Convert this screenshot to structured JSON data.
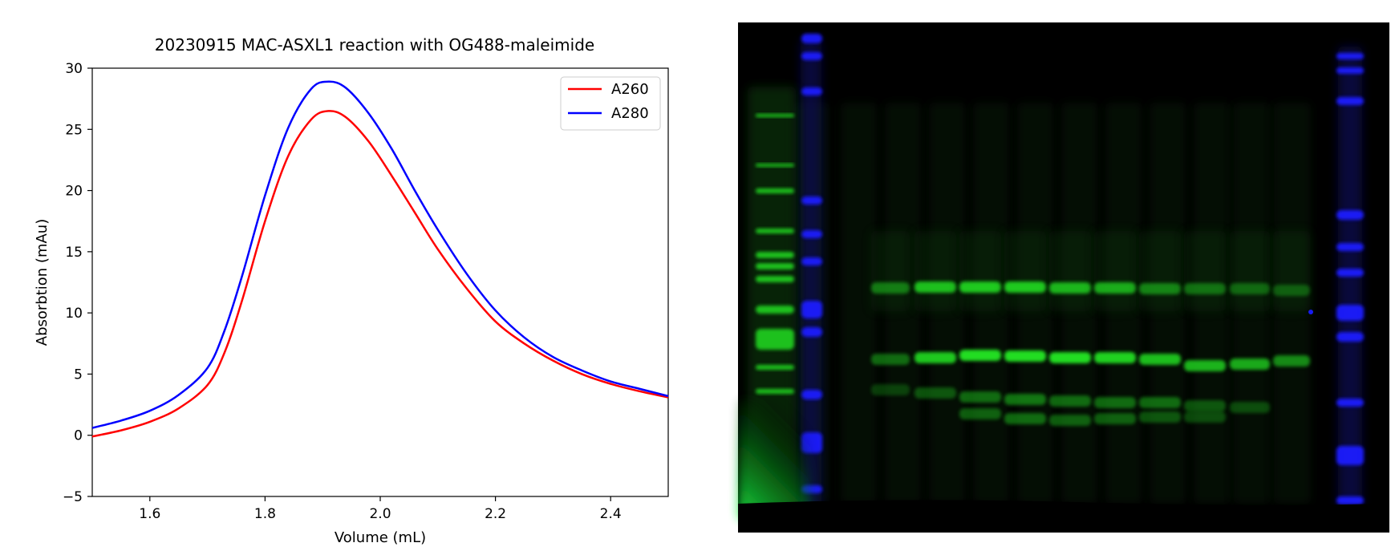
{
  "chart_data": {
    "type": "line",
    "title": "20230915  MAC-ASXL1 reaction with OG488-maleimide",
    "xlabel": "Volume (mL)",
    "ylabel": "Absorbtion (mAu)",
    "xlim": [
      1.5,
      2.5
    ],
    "ylim": [
      -5,
      30
    ],
    "xticks": [
      "1.6",
      "1.8",
      "2.0",
      "2.2",
      "2.4"
    ],
    "yticks": [
      "−5",
      "0",
      "5",
      "10",
      "15",
      "20",
      "25",
      "30"
    ],
    "grid": false,
    "legend_position": "top-right",
    "series": [
      {
        "name": "A260",
        "color": "#ff0000",
        "x": [
          1.5,
          1.55,
          1.6,
          1.65,
          1.7,
          1.73,
          1.76,
          1.8,
          1.84,
          1.88,
          1.91,
          1.94,
          1.98,
          2.02,
          2.06,
          2.1,
          2.15,
          2.2,
          2.25,
          2.3,
          2.35,
          2.4,
          2.45,
          2.5
        ],
        "y": [
          -0.1,
          0.4,
          1.1,
          2.2,
          4.1,
          6.8,
          11.0,
          17.5,
          22.8,
          25.8,
          26.5,
          26.0,
          24.0,
          21.2,
          18.2,
          15.2,
          12.0,
          9.3,
          7.5,
          6.1,
          5.0,
          4.2,
          3.6,
          3.1
        ]
      },
      {
        "name": "A280",
        "color": "#0000ff",
        "x": [
          1.5,
          1.55,
          1.6,
          1.65,
          1.7,
          1.73,
          1.76,
          1.8,
          1.84,
          1.88,
          1.91,
          1.94,
          1.98,
          2.02,
          2.06,
          2.1,
          2.15,
          2.2,
          2.25,
          2.3,
          2.35,
          2.4,
          2.45,
          2.5
        ],
        "y": [
          0.6,
          1.2,
          2.0,
          3.3,
          5.5,
          8.6,
          13.0,
          19.6,
          25.1,
          28.3,
          28.9,
          28.4,
          26.3,
          23.4,
          20.0,
          16.8,
          13.2,
          10.2,
          8.0,
          6.4,
          5.3,
          4.4,
          3.8,
          3.2
        ]
      }
    ]
  },
  "gel_image": {
    "description_kind": "fluorescence-gel",
    "background": "#000000",
    "ladder_color": "#1a1aff",
    "sample_color": "#22dd22"
  }
}
